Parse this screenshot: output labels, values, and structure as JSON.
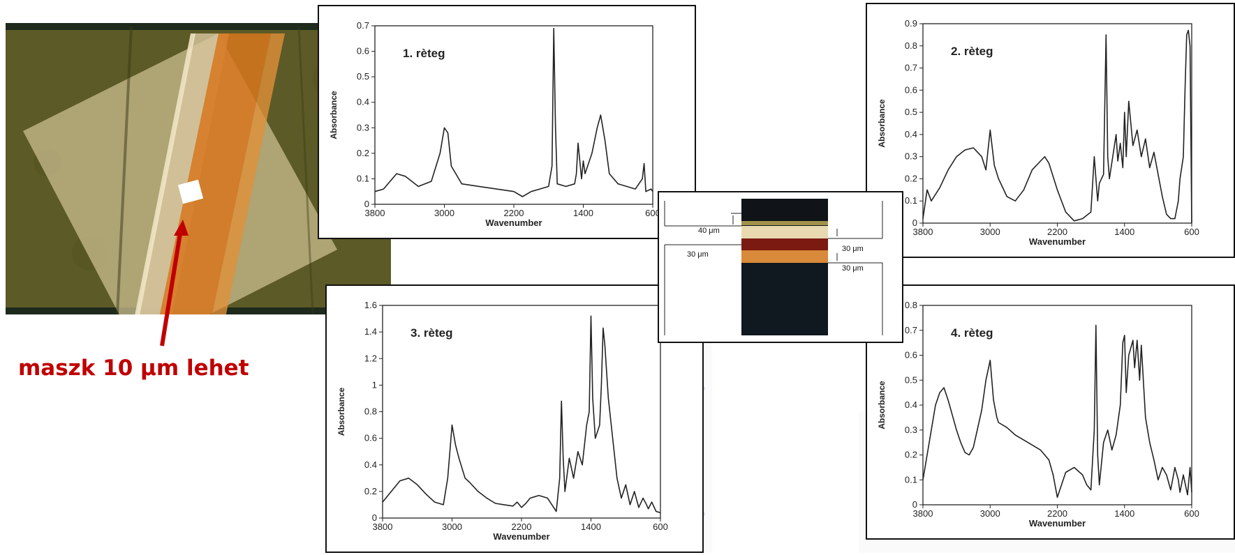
{
  "caption": {
    "text": "maszk 10 μm lehet",
    "color": "#c00000"
  },
  "cross_section": {
    "labels": [
      "40 μm",
      "30 μm",
      "30 μm",
      "30 μm"
    ],
    "layer_colors": [
      "#101418",
      "#e8d9b0",
      "#7a1a10",
      "#d88a3a",
      "#101820"
    ]
  },
  "chart_data": [
    {
      "type": "line",
      "title": "1. rèteg",
      "xlabel": "Wavenumber",
      "ylabel": "Absorbance",
      "xlim": [
        3800,
        600
      ],
      "ylim": [
        0,
        0.7
      ],
      "x_ticks": [
        "3800",
        "3000",
        "2200",
        "1400",
        "600"
      ],
      "y_ticks": [
        "0",
        "0.1",
        "0.2",
        "0.3",
        "0.4",
        "0.5",
        "0.6",
        "0.7"
      ],
      "series": [
        {
          "x": [
            3800,
            3700,
            3550,
            3450,
            3300,
            3150,
            3050,
            3000,
            2960,
            2920,
            2800,
            2600,
            2400,
            2200,
            2100,
            2000,
            1900,
            1800,
            1760,
            1740,
            1720,
            1700,
            1600,
            1500,
            1480,
            1460,
            1420,
            1400,
            1380,
            1300,
            1240,
            1200,
            1150,
            1100,
            1000,
            900,
            800,
            720,
            700,
            680,
            620,
            600
          ],
          "y": [
            0.05,
            0.06,
            0.12,
            0.11,
            0.07,
            0.09,
            0.2,
            0.3,
            0.28,
            0.15,
            0.08,
            0.07,
            0.06,
            0.05,
            0.03,
            0.05,
            0.06,
            0.07,
            0.15,
            0.69,
            0.3,
            0.08,
            0.07,
            0.08,
            0.12,
            0.24,
            0.1,
            0.17,
            0.12,
            0.2,
            0.3,
            0.35,
            0.25,
            0.12,
            0.08,
            0.07,
            0.06,
            0.1,
            0.16,
            0.05,
            0.06,
            0.05
          ]
        }
      ]
    },
    {
      "type": "line",
      "title": "2. rèteg",
      "xlabel": "Wavenumber",
      "ylabel": "Absorbance",
      "xlim": [
        3800,
        600
      ],
      "ylim": [
        0,
        0.9
      ],
      "x_ticks": [
        "3800",
        "3000",
        "2200",
        "1400",
        "600"
      ],
      "y_ticks": [
        "0",
        "0.1",
        "0.2",
        "0.3",
        "0.4",
        "0.5",
        "0.6",
        "0.7",
        "0.8",
        "0.9"
      ],
      "series": [
        {
          "x": [
            3800,
            3750,
            3700,
            3600,
            3500,
            3400,
            3300,
            3200,
            3100,
            3050,
            3000,
            2950,
            2900,
            2800,
            2700,
            2600,
            2500,
            2400,
            2350,
            2300,
            2200,
            2100,
            2000,
            1900,
            1800,
            1760,
            1740,
            1720,
            1700,
            1650,
            1620,
            1600,
            1580,
            1500,
            1480,
            1450,
            1420,
            1400,
            1380,
            1350,
            1300,
            1250,
            1200,
            1150,
            1100,
            1050,
            1000,
            950,
            900,
            850,
            800,
            760,
            740,
            700,
            680,
            660,
            640,
            620,
            600
          ],
          "y": [
            0.02,
            0.15,
            0.1,
            0.16,
            0.24,
            0.3,
            0.33,
            0.34,
            0.3,
            0.24,
            0.42,
            0.26,
            0.2,
            0.12,
            0.1,
            0.15,
            0.24,
            0.28,
            0.3,
            0.27,
            0.15,
            0.05,
            0.01,
            0.02,
            0.05,
            0.3,
            0.2,
            0.1,
            0.18,
            0.22,
            0.85,
            0.3,
            0.2,
            0.4,
            0.28,
            0.36,
            0.25,
            0.5,
            0.3,
            0.55,
            0.35,
            0.42,
            0.3,
            0.38,
            0.25,
            0.32,
            0.22,
            0.12,
            0.04,
            0.02,
            0.02,
            0.1,
            0.2,
            0.3,
            0.6,
            0.85,
            0.87,
            0.8,
            0.0
          ]
        }
      ]
    },
    {
      "type": "line",
      "title": "3. rèteg",
      "xlabel": "Wavenumber",
      "ylabel": "Absorbance",
      "xlim": [
        3800,
        600
      ],
      "ylim": [
        0,
        1.6
      ],
      "x_ticks": [
        "3800",
        "3000",
        "2200",
        "1400",
        "600"
      ],
      "y_ticks": [
        "0",
        "0.2",
        "0.4",
        "0.6",
        "0.8",
        "1",
        "1.2",
        "1.4",
        "1.6"
      ],
      "series": [
        {
          "x": [
            3800,
            3700,
            3600,
            3500,
            3400,
            3300,
            3200,
            3100,
            3050,
            3000,
            2960,
            2920,
            2850,
            2800,
            2700,
            2600,
            2500,
            2400,
            2300,
            2250,
            2200,
            2150,
            2100,
            2000,
            1900,
            1850,
            1800,
            1760,
            1740,
            1720,
            1700,
            1650,
            1600,
            1550,
            1500,
            1450,
            1420,
            1400,
            1380,
            1350,
            1300,
            1280,
            1260,
            1240,
            1200,
            1150,
            1100,
            1050,
            1000,
            950,
            900,
            850,
            800,
            760,
            740,
            700,
            650,
            600
          ],
          "y": [
            0.12,
            0.2,
            0.28,
            0.3,
            0.25,
            0.18,
            0.12,
            0.1,
            0.3,
            0.7,
            0.55,
            0.45,
            0.3,
            0.27,
            0.2,
            0.15,
            0.11,
            0.1,
            0.09,
            0.12,
            0.08,
            0.11,
            0.15,
            0.17,
            0.15,
            0.1,
            0.05,
            0.3,
            0.88,
            0.45,
            0.2,
            0.45,
            0.3,
            0.5,
            0.4,
            0.7,
            0.8,
            1.52,
            0.9,
            0.6,
            0.7,
            1.0,
            1.43,
            1.3,
            0.9,
            0.6,
            0.3,
            0.15,
            0.25,
            0.1,
            0.2,
            0.08,
            0.15,
            0.1,
            0.07,
            0.12,
            0.05,
            0.04
          ]
        }
      ]
    },
    {
      "type": "line",
      "title": "4. rèteg",
      "xlabel": "Wavenumber",
      "ylabel": "Absorbance",
      "xlim": [
        3800,
        600
      ],
      "ylim": [
        0,
        0.8
      ],
      "x_ticks": [
        "3800",
        "3000",
        "2200",
        "1400",
        "600"
      ],
      "y_ticks": [
        "0",
        "0.1",
        "0.2",
        "0.3",
        "0.4",
        "0.5",
        "0.6",
        "0.7",
        "0.8"
      ],
      "series": [
        {
          "x": [
            3800,
            3750,
            3700,
            3650,
            3600,
            3550,
            3500,
            3450,
            3400,
            3350,
            3300,
            3250,
            3200,
            3100,
            3050,
            3000,
            2960,
            2920,
            2900,
            2800,
            2700,
            2600,
            2500,
            2400,
            2300,
            2250,
            2200,
            2150,
            2100,
            2000,
            1900,
            1850,
            1800,
            1760,
            1740,
            1720,
            1700,
            1650,
            1600,
            1550,
            1500,
            1450,
            1420,
            1400,
            1380,
            1350,
            1300,
            1280,
            1250,
            1220,
            1200,
            1150,
            1100,
            1050,
            1000,
            950,
            900,
            850,
            800,
            760,
            740,
            700,
            650,
            620,
            600
          ],
          "y": [
            0.1,
            0.2,
            0.3,
            0.4,
            0.45,
            0.47,
            0.42,
            0.36,
            0.3,
            0.25,
            0.21,
            0.2,
            0.23,
            0.38,
            0.5,
            0.58,
            0.42,
            0.35,
            0.33,
            0.31,
            0.28,
            0.26,
            0.24,
            0.22,
            0.18,
            0.12,
            0.03,
            0.08,
            0.13,
            0.15,
            0.12,
            0.08,
            0.06,
            0.3,
            0.72,
            0.2,
            0.08,
            0.25,
            0.3,
            0.22,
            0.28,
            0.4,
            0.65,
            0.68,
            0.45,
            0.6,
            0.66,
            0.55,
            0.66,
            0.5,
            0.64,
            0.35,
            0.25,
            0.18,
            0.1,
            0.15,
            0.12,
            0.06,
            0.15,
            0.1,
            0.05,
            0.12,
            0.04,
            0.15,
            0.05
          ]
        }
      ]
    }
  ]
}
